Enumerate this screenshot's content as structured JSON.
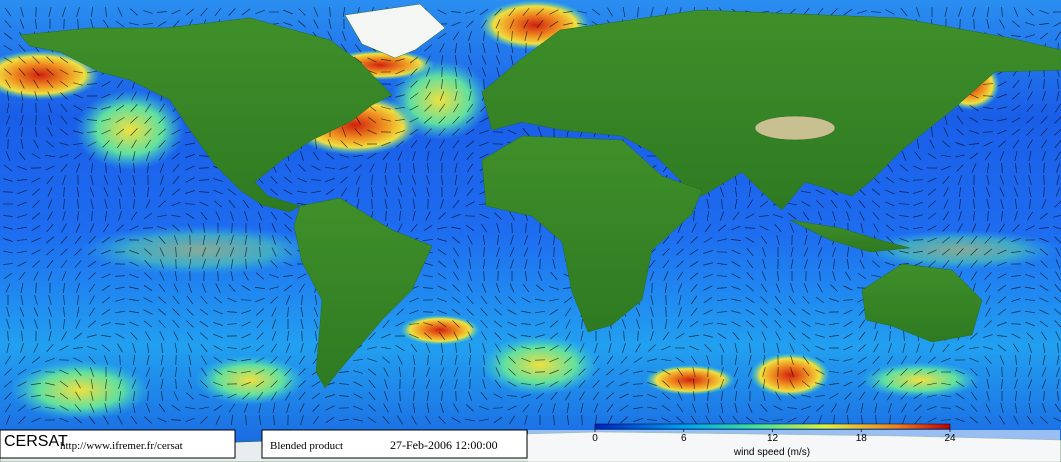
{
  "footer": {
    "logo": "CERSAT",
    "url": "http://www.ifremer.fr/cersat",
    "product": "Blended product",
    "date": "27-Feb-2006 12:00:00"
  },
  "colorbar": {
    "label": "wind speed (m/s)",
    "lim": [
      0,
      24
    ],
    "ticks": [
      0,
      6,
      12,
      18,
      24
    ]
  }
}
